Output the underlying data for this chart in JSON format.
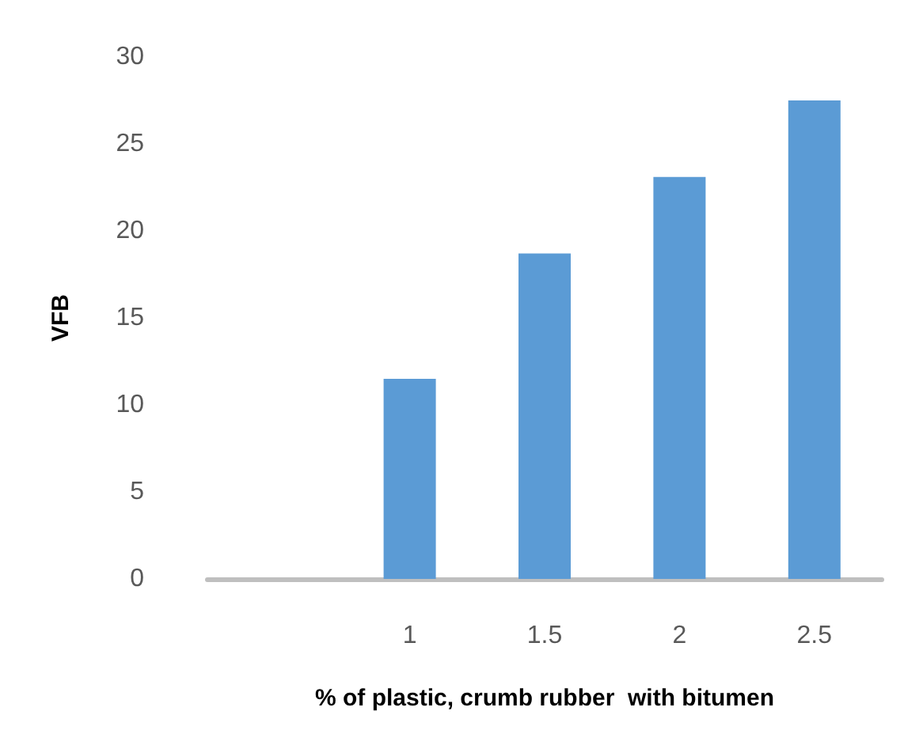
{
  "chart_data": {
    "type": "bar",
    "xlabel": "% of plastic, crumb rubber  with bitumen",
    "ylabel": "VFB",
    "categories": [
      null,
      "1",
      "1.5",
      "2",
      "2.5"
    ],
    "values": [
      null,
      11.5,
      18.7,
      23.1,
      27.5
    ],
    "color": "#5b9bd5",
    "ylim": [
      0,
      30
    ],
    "yticks": [
      0,
      5,
      10,
      15,
      20,
      25,
      30
    ],
    "grid": false
  }
}
